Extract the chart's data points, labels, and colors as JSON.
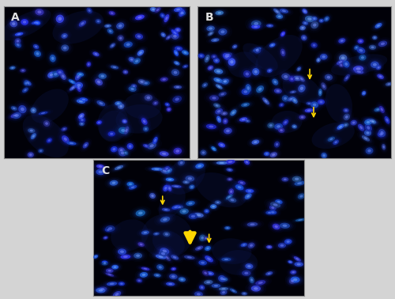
{
  "fig_width": 5.0,
  "fig_height": 3.78,
  "bg_color": "#d4d4d4",
  "panel_border_color": "#888888",
  "panels": [
    "A",
    "B",
    "C"
  ],
  "layout": {
    "A": [
      0.01,
      0.47,
      0.47,
      0.51
    ],
    "B": [
      0.5,
      0.47,
      0.49,
      0.51
    ],
    "C": [
      0.235,
      0.01,
      0.535,
      0.455
    ]
  },
  "label_color": "#e0e0e0",
  "arrow_color": "#FFD700",
  "seed_A": 42,
  "seed_B": 77,
  "seed_C": 123,
  "n_cells_A": 120,
  "n_cells_B": 140,
  "n_cells_C": 130,
  "thin_arrows_B": [
    [
      0.6,
      0.3
    ],
    [
      0.58,
      0.55
    ]
  ],
  "thick_arrow_C": [
    [
      0.46,
      0.42
    ]
  ],
  "thin_arrows_C": [
    [
      0.55,
      0.42
    ],
    [
      0.33,
      0.7
    ]
  ]
}
